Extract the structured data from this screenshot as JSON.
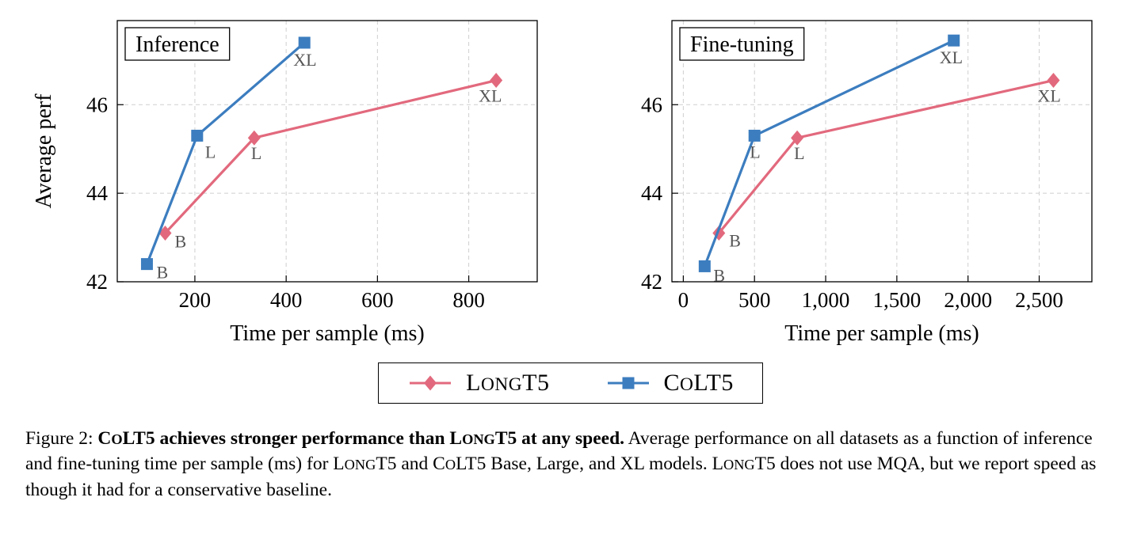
{
  "colors": {
    "longt5": "#e2697d",
    "colt5": "#3c7dbf",
    "grid": "#cfcfcf",
    "point_label": "#555555",
    "axis": "#000000"
  },
  "chart_data": [
    {
      "type": "line",
      "title": "Inference",
      "xlabel": "Time per sample (ms)",
      "ylabel": "Average perf",
      "xlim": [
        30,
        950
      ],
      "ylim": [
        42,
        47.9
      ],
      "xticks": [
        200,
        400,
        600,
        800
      ],
      "xtick_labels": [
        "200",
        "400",
        "600",
        "800"
      ],
      "yticks": [
        42,
        44,
        46
      ],
      "ytick_labels": [
        "42",
        "44",
        "46"
      ],
      "grid": "dashed",
      "legend_position": "below-figure",
      "series": [
        {
          "name": "LongT5",
          "color_key": "longt5",
          "marker": "diamond",
          "points": [
            {
              "x": 135,
              "y": 43.1,
              "label": "B",
              "label_dx": 12,
              "label_dy": 18
            },
            {
              "x": 330,
              "y": 45.25,
              "label": "L",
              "label_dx": -4,
              "label_dy": 27
            },
            {
              "x": 860,
              "y": 46.55,
              "label": "XL",
              "label_dx": -22,
              "label_dy": 27
            }
          ]
        },
        {
          "name": "CoLT5",
          "color_key": "colt5",
          "marker": "square",
          "points": [
            {
              "x": 95,
              "y": 42.4,
              "label": "B",
              "label_dx": 12,
              "label_dy": 18
            },
            {
              "x": 205,
              "y": 45.3,
              "label": "L",
              "label_dx": 0,
              "label_dy": 28
            },
            {
              "x": 440,
              "y": 47.4,
              "label": "XL",
              "label_dx": -14,
              "label_dy": 29
            }
          ]
        }
      ]
    },
    {
      "type": "line",
      "title": "Fine-tuning",
      "xlabel": "Time per sample (ms)",
      "ylabel": "",
      "xlim": [
        -80,
        2870
      ],
      "ylim": [
        42,
        47.9
      ],
      "xticks": [
        0,
        500,
        1000,
        1500,
        2000,
        2500
      ],
      "xtick_labels": [
        "0",
        "500",
        "1,000",
        "1,500",
        "2,000",
        "2,500"
      ],
      "yticks": [
        42,
        44,
        46
      ],
      "ytick_labels": [
        "42",
        "44",
        "46"
      ],
      "grid": "dashed",
      "legend_position": "below-figure",
      "series": [
        {
          "name": "LongT5",
          "color_key": "longt5",
          "marker": "diamond",
          "points": [
            {
              "x": 250,
              "y": 43.1,
              "label": "B",
              "label_dx": 13,
              "label_dy": 17
            },
            {
              "x": 800,
              "y": 45.25,
              "label": "L",
              "label_dx": -4,
              "label_dy": 27
            },
            {
              "x": 2600,
              "y": 46.55,
              "label": "XL",
              "label_dx": -20,
              "label_dy": 27
            }
          ]
        },
        {
          "name": "CoLT5",
          "color_key": "colt5",
          "marker": "square",
          "points": [
            {
              "x": 150,
              "y": 42.35,
              "label": "B",
              "label_dx": 11,
              "label_dy": 19
            },
            {
              "x": 500,
              "y": 45.3,
              "label": "L",
              "label_dx": -6,
              "label_dy": 28
            },
            {
              "x": 1900,
              "y": 47.45,
              "label": "XL",
              "label_dx": -18,
              "label_dy": 29
            }
          ]
        }
      ]
    }
  ],
  "legend": {
    "items": [
      {
        "label": "LongT5",
        "marker": "diamond",
        "color_key": "longt5"
      },
      {
        "label": "CoLT5",
        "marker": "square",
        "color_key": "colt5"
      }
    ]
  },
  "caption": {
    "segments": [
      {
        "text": "Figure 2: ",
        "bold": false
      },
      {
        "text": "CoLT5 achieves stronger performance than LongT5 at any speed.",
        "bold": true
      },
      {
        "text": " Average performance on all datasets as a function of inference and fine-tuning time per sample (ms) for LongT5 and CoLT5 Base, Large, and XL models. LongT5 does not use MQA, but we report speed as though it had for a conservative baseline.",
        "bold": false
      }
    ]
  }
}
